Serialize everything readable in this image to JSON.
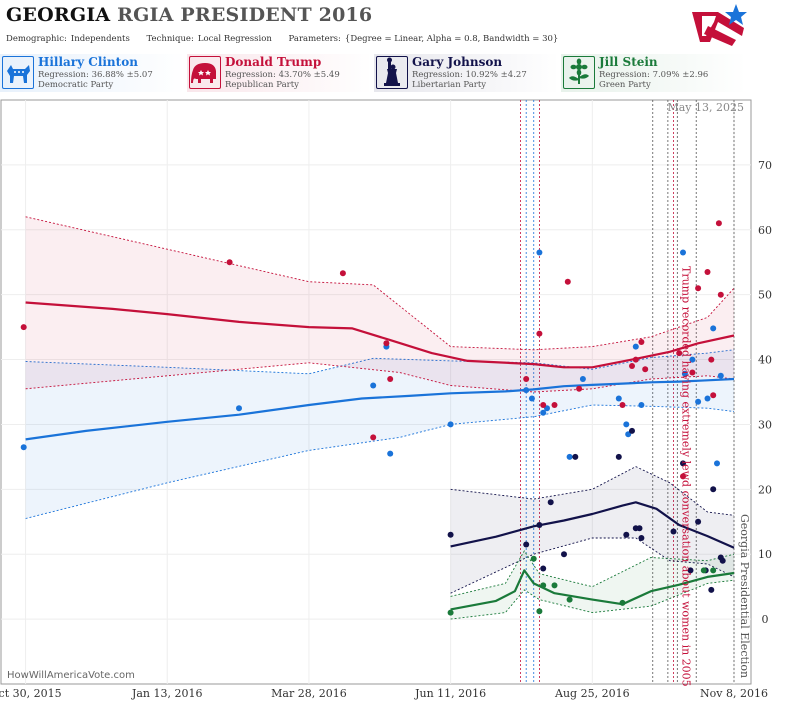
{
  "header": {
    "title_state": "GEORGIA",
    "title_rest": "RGIA PRESIDENT 2016",
    "demographic_label": "Demographic:",
    "demographic_value": "Independents",
    "technique_label": "Technique:",
    "technique_value": "Local Regression",
    "parameters_label": "Parameters:",
    "parameters_value": "{Degree = Linear, Alpha = 0.8, Bandwidth = 30}"
  },
  "candidates": [
    {
      "name": "Hillary Clinton",
      "regression": "Regression: 36.88% ±5.07",
      "party": "Democratic Party",
      "color": "#1a73d9",
      "icon": "donkey-icon"
    },
    {
      "name": "Donald Trump",
      "regression": "Regression: 43.70% ±5.49",
      "party": "Republican Party",
      "color": "#c4103a",
      "icon": "elephant-icon"
    },
    {
      "name": "Gary Johnson",
      "regression": "Regression: 10.92% ±4.27",
      "party": "Libertarian Party",
      "color": "#12124a",
      "icon": "statue-of-liberty-icon"
    },
    {
      "name": "Jill Stein",
      "regression": "Regression: 7.09% ±2.96",
      "party": "Green Party",
      "color": "#1a7a3a",
      "icon": "flower-icon"
    }
  ],
  "watermark": "HowWillAmericaVote.com",
  "date_stamp": "May 13, 2025",
  "chart_data": {
    "type": "scatter",
    "x_type": "date",
    "xlim": [
      "2015-10-17",
      "2016-11-17"
    ],
    "ylim": [
      -10,
      80
    ],
    "y_ticks": [
      0,
      10,
      20,
      30,
      40,
      50,
      60,
      70
    ],
    "x_tick_labels": [
      {
        "date": "2015-10-30",
        "label": "Oct 30, 2015"
      },
      {
        "date": "2016-01-13",
        "label": "Jan 13, 2016"
      },
      {
        "date": "2016-03-28",
        "label": "Mar 28, 2016"
      },
      {
        "date": "2016-06-11",
        "label": "Jun 11, 2016"
      },
      {
        "date": "2016-08-25",
        "label": "Aug 25, 2016"
      },
      {
        "date": "2016-11-08",
        "label": "Nov 8, 2016"
      }
    ],
    "annotations": [
      {
        "date": "2016-10-07",
        "text": "Trump recorded having extremely lewd conversation about women in 2005",
        "color": "#c4103a"
      },
      {
        "date": "2016-11-08",
        "text": "Georgia Presidential Election",
        "color": "#555555"
      }
    ],
    "event_lines": [
      {
        "date": "2016-07-18",
        "color": "#c4103a"
      },
      {
        "date": "2016-07-21",
        "color": "#1a73d9"
      },
      {
        "date": "2016-07-25",
        "color": "#1a73d9"
      },
      {
        "date": "2016-07-28",
        "color": "#c4103a"
      },
      {
        "date": "2016-09-26",
        "color": "#555555"
      },
      {
        "date": "2016-10-04",
        "color": "#555555"
      },
      {
        "date": "2016-10-07",
        "color": "#c4103a"
      },
      {
        "date": "2016-10-09",
        "color": "#555555"
      },
      {
        "date": "2016-10-19",
        "color": "#555555"
      },
      {
        "date": "2016-11-08",
        "color": "#555555"
      }
    ],
    "series": [
      {
        "name": "Hillary Clinton",
        "color": "#1a73d9",
        "fill": "rgba(26,115,217,0.08)",
        "trend": [
          [
            "2015-10-30",
            27.7
          ],
          [
            "2015-12-01",
            29.0
          ],
          [
            "2016-01-13",
            30.4
          ],
          [
            "2016-02-20",
            31.5
          ],
          [
            "2016-03-28",
            33.0
          ],
          [
            "2016-04-25",
            34.0
          ],
          [
            "2016-05-20",
            34.4
          ],
          [
            "2016-06-11",
            34.8
          ],
          [
            "2016-07-10",
            35.1
          ],
          [
            "2016-07-25",
            35.4
          ],
          [
            "2016-08-10",
            35.9
          ],
          [
            "2016-08-25",
            36.1
          ],
          [
            "2016-09-10",
            36.3
          ],
          [
            "2016-09-25",
            36.5
          ],
          [
            "2016-10-10",
            36.6
          ],
          [
            "2016-10-25",
            36.8
          ],
          [
            "2016-11-08",
            37.0
          ]
        ],
        "upper": [
          [
            "2015-10-30",
            39.7
          ],
          [
            "2016-01-13",
            38.8
          ],
          [
            "2016-03-28",
            37.8
          ],
          [
            "2016-05-01",
            40.2
          ],
          [
            "2016-06-11",
            39.8
          ],
          [
            "2016-07-25",
            39.5
          ],
          [
            "2016-08-25",
            38.5
          ],
          [
            "2016-09-25",
            40.3
          ],
          [
            "2016-10-25",
            41.0
          ],
          [
            "2016-11-08",
            41.5
          ]
        ],
        "lower": [
          [
            "2015-10-30",
            15.5
          ],
          [
            "2016-01-13",
            21.0
          ],
          [
            "2016-03-28",
            26.0
          ],
          [
            "2016-05-15",
            28.0
          ],
          [
            "2016-06-11",
            30.0
          ],
          [
            "2016-07-25",
            31.2
          ],
          [
            "2016-08-25",
            33.0
          ],
          [
            "2016-09-25",
            32.8
          ],
          [
            "2016-10-25",
            32.5
          ],
          [
            "2016-11-08",
            32.0
          ]
        ],
        "points": [
          [
            "2015-10-29",
            26.5
          ],
          [
            "2016-02-20",
            32.5
          ],
          [
            "2016-05-01",
            36.0
          ],
          [
            "2016-05-08",
            42.0
          ],
          [
            "2016-05-10",
            25.5
          ],
          [
            "2016-06-11",
            30.0
          ],
          [
            "2016-07-21",
            35.3
          ],
          [
            "2016-07-24",
            34.0
          ],
          [
            "2016-07-28",
            56.5
          ],
          [
            "2016-07-30",
            31.8
          ],
          [
            "2016-08-01",
            32.5
          ],
          [
            "2016-08-13",
            25.0
          ],
          [
            "2016-08-20",
            37.0
          ],
          [
            "2016-09-08",
            34.0
          ],
          [
            "2016-09-12",
            30.0
          ],
          [
            "2016-09-13",
            28.5
          ],
          [
            "2016-09-17",
            42.0
          ],
          [
            "2016-09-20",
            33.0
          ],
          [
            "2016-10-12",
            56.5
          ],
          [
            "2016-10-13",
            37.8
          ],
          [
            "2016-10-17",
            40.0
          ],
          [
            "2016-10-20",
            33.5
          ],
          [
            "2016-10-25",
            34.0
          ],
          [
            "2016-10-28",
            44.8
          ],
          [
            "2016-10-30",
            24.0
          ],
          [
            "2016-11-01",
            37.5
          ]
        ]
      },
      {
        "name": "Donald Trump",
        "color": "#c4103a",
        "fill": "rgba(196,16,58,0.07)",
        "trend": [
          [
            "2015-10-30",
            48.8
          ],
          [
            "2015-12-15",
            47.8
          ],
          [
            "2016-01-13",
            47.0
          ],
          [
            "2016-02-20",
            45.8
          ],
          [
            "2016-03-28",
            45.0
          ],
          [
            "2016-04-20",
            44.8
          ],
          [
            "2016-05-10",
            43.0
          ],
          [
            "2016-06-01",
            41.0
          ],
          [
            "2016-06-20",
            39.8
          ],
          [
            "2016-07-25",
            39.3
          ],
          [
            "2016-08-10",
            38.8
          ],
          [
            "2016-08-25",
            38.8
          ],
          [
            "2016-09-15",
            40.0
          ],
          [
            "2016-10-05",
            41.2
          ],
          [
            "2016-10-20",
            42.5
          ],
          [
            "2016-11-08",
            43.7
          ]
        ],
        "upper": [
          [
            "2015-10-30",
            62.0
          ],
          [
            "2016-01-13",
            57.0
          ],
          [
            "2016-03-28",
            52.0
          ],
          [
            "2016-05-01",
            51.5
          ],
          [
            "2016-06-11",
            42.0
          ],
          [
            "2016-07-25",
            41.5
          ],
          [
            "2016-08-25",
            42.0
          ],
          [
            "2016-09-25",
            43.5
          ],
          [
            "2016-10-25",
            46.5
          ],
          [
            "2016-11-08",
            51.0
          ]
        ],
        "lower": [
          [
            "2015-10-30",
            35.5
          ],
          [
            "2016-01-13",
            37.5
          ],
          [
            "2016-03-28",
            39.5
          ],
          [
            "2016-05-15",
            38.0
          ],
          [
            "2016-06-11",
            36.0
          ],
          [
            "2016-07-25",
            35.0
          ],
          [
            "2016-08-25",
            35.5
          ],
          [
            "2016-09-25",
            37.0
          ],
          [
            "2016-10-25",
            37.5
          ],
          [
            "2016-11-08",
            37.0
          ]
        ],
        "points": [
          [
            "2015-10-29",
            45.0
          ],
          [
            "2016-02-15",
            55.0
          ],
          [
            "2016-04-15",
            53.3
          ],
          [
            "2016-05-01",
            28.0
          ],
          [
            "2016-05-08",
            42.5
          ],
          [
            "2016-05-10",
            37.0
          ],
          [
            "2016-07-21",
            37.0
          ],
          [
            "2016-07-28",
            44.0
          ],
          [
            "2016-07-30",
            33.0
          ],
          [
            "2016-08-05",
            33.0
          ],
          [
            "2016-08-12",
            52.0
          ],
          [
            "2016-08-18",
            35.5
          ],
          [
            "2016-09-10",
            33.0
          ],
          [
            "2016-09-15",
            39.0
          ],
          [
            "2016-09-17",
            40.0
          ],
          [
            "2016-09-20",
            42.7
          ],
          [
            "2016-09-22",
            38.5
          ],
          [
            "2016-10-10",
            41.0
          ],
          [
            "2016-10-12",
            22.0
          ],
          [
            "2016-10-17",
            38.0
          ],
          [
            "2016-10-20",
            51.0
          ],
          [
            "2016-10-25",
            53.5
          ],
          [
            "2016-10-27",
            40.0
          ],
          [
            "2016-10-28",
            34.5
          ],
          [
            "2016-10-31",
            61.0
          ],
          [
            "2016-11-01",
            50.0
          ]
        ]
      },
      {
        "name": "Gary Johnson",
        "color": "#12124a",
        "fill": "rgba(18,18,74,0.07)",
        "trend": [
          [
            "2016-06-11",
            11.2
          ],
          [
            "2016-07-05",
            12.7
          ],
          [
            "2016-07-25",
            14.3
          ],
          [
            "2016-08-10",
            15.2
          ],
          [
            "2016-08-25",
            16.2
          ],
          [
            "2016-09-10",
            17.5
          ],
          [
            "2016-09-17",
            18.0
          ],
          [
            "2016-09-28",
            17.0
          ],
          [
            "2016-10-10",
            14.5
          ],
          [
            "2016-10-25",
            12.8
          ],
          [
            "2016-11-08",
            11.0
          ]
        ],
        "upper": [
          [
            "2016-06-11",
            20.0
          ],
          [
            "2016-07-25",
            18.5
          ],
          [
            "2016-08-25",
            20.0
          ],
          [
            "2016-09-17",
            23.5
          ],
          [
            "2016-10-05",
            21.0
          ],
          [
            "2016-10-25",
            16.5
          ],
          [
            "2016-11-08",
            16.0
          ]
        ],
        "lower": [
          [
            "2016-06-11",
            4.0
          ],
          [
            "2016-07-25",
            10.0
          ],
          [
            "2016-08-25",
            12.5
          ],
          [
            "2016-09-17",
            12.5
          ],
          [
            "2016-10-05",
            9.0
          ],
          [
            "2016-10-25",
            8.5
          ],
          [
            "2016-11-08",
            6.5
          ]
        ],
        "points": [
          [
            "2016-06-11",
            13.0
          ],
          [
            "2016-07-21",
            11.5
          ],
          [
            "2016-07-28",
            14.5
          ],
          [
            "2016-07-30",
            7.8
          ],
          [
            "2016-08-03",
            18.0
          ],
          [
            "2016-08-10",
            10.0
          ],
          [
            "2016-08-16",
            25.0
          ],
          [
            "2016-09-08",
            25.0
          ],
          [
            "2016-09-12",
            13.0
          ],
          [
            "2016-09-15",
            29.0
          ],
          [
            "2016-09-17",
            14.0
          ],
          [
            "2016-09-19",
            14.0
          ],
          [
            "2016-09-20",
            12.5
          ],
          [
            "2016-10-07",
            13.5
          ],
          [
            "2016-10-12",
            24.0
          ],
          [
            "2016-10-16",
            7.5
          ],
          [
            "2016-10-20",
            15.0
          ],
          [
            "2016-10-24",
            7.5
          ],
          [
            "2016-10-27",
            4.5
          ],
          [
            "2016-10-28",
            20.0
          ],
          [
            "2016-11-01",
            9.5
          ],
          [
            "2016-11-02",
            9.0
          ]
        ]
      },
      {
        "name": "Jill Stein",
        "color": "#1a7a3a",
        "fill": "rgba(26,122,58,0.07)",
        "trend": [
          [
            "2016-06-11",
            1.5
          ],
          [
            "2016-07-05",
            2.8
          ],
          [
            "2016-07-15",
            4.3
          ],
          [
            "2016-07-20",
            7.5
          ],
          [
            "2016-07-25",
            5.5
          ],
          [
            "2016-08-05",
            4.0
          ],
          [
            "2016-08-25",
            3.0
          ],
          [
            "2016-09-10",
            2.3
          ],
          [
            "2016-09-25",
            4.3
          ],
          [
            "2016-10-10",
            5.3
          ],
          [
            "2016-10-25",
            6.5
          ],
          [
            "2016-11-08",
            7.1
          ]
        ],
        "upper": [
          [
            "2016-06-11",
            3.5
          ],
          [
            "2016-07-10",
            5.5
          ],
          [
            "2016-07-20",
            10.5
          ],
          [
            "2016-07-28",
            7.0
          ],
          [
            "2016-08-25",
            5.0
          ],
          [
            "2016-09-25",
            9.5
          ],
          [
            "2016-10-25",
            9.0
          ],
          [
            "2016-11-08",
            10.0
          ]
        ],
        "lower": [
          [
            "2016-06-11",
            0.0
          ],
          [
            "2016-07-10",
            1.0
          ],
          [
            "2016-07-20",
            4.5
          ],
          [
            "2016-07-28",
            3.0
          ],
          [
            "2016-08-25",
            1.0
          ],
          [
            "2016-09-25",
            2.0
          ],
          [
            "2016-10-25",
            5.5
          ],
          [
            "2016-11-08",
            6.0
          ]
        ],
        "points": [
          [
            "2016-06-11",
            1.0
          ],
          [
            "2016-07-25",
            9.3
          ],
          [
            "2016-07-28",
            1.2
          ],
          [
            "2016-07-30",
            5.2
          ],
          [
            "2016-08-05",
            5.2
          ],
          [
            "2016-08-13",
            3.0
          ],
          [
            "2016-09-10",
            2.5
          ],
          [
            "2016-10-23",
            7.5
          ],
          [
            "2016-10-28",
            7.5
          ]
        ]
      }
    ]
  }
}
